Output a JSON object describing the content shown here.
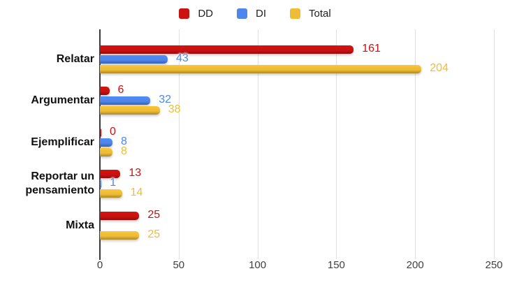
{
  "chart_data": {
    "type": "bar",
    "orientation": "horizontal",
    "title": "",
    "categories": [
      "Relatar",
      "Argumentar",
      "Ejemplificar",
      "Reportar un pensamiento",
      "Mixta"
    ],
    "series": [
      {
        "name": "DD",
        "color": "#cc1111",
        "values": [
          161,
          6,
          0,
          13,
          25
        ]
      },
      {
        "name": "DI",
        "color": "#4e86ec",
        "values": [
          43,
          32,
          8,
          1,
          null
        ]
      },
      {
        "name": "Total",
        "color": "#efbd35",
        "values": [
          204,
          38,
          8,
          14,
          25
        ]
      }
    ],
    "xlim": [
      0,
      250
    ],
    "xticks": [
      0,
      50,
      100,
      150,
      200,
      250
    ],
    "grid": true,
    "legend_position": "top",
    "value_labels": true,
    "colors": {
      "grid_color": "#e0e0e0",
      "baseline_color": "#3a3a3a",
      "tick_text_color": "#404040",
      "category_text_color": "#111111",
      "background": "#ffffff"
    }
  }
}
